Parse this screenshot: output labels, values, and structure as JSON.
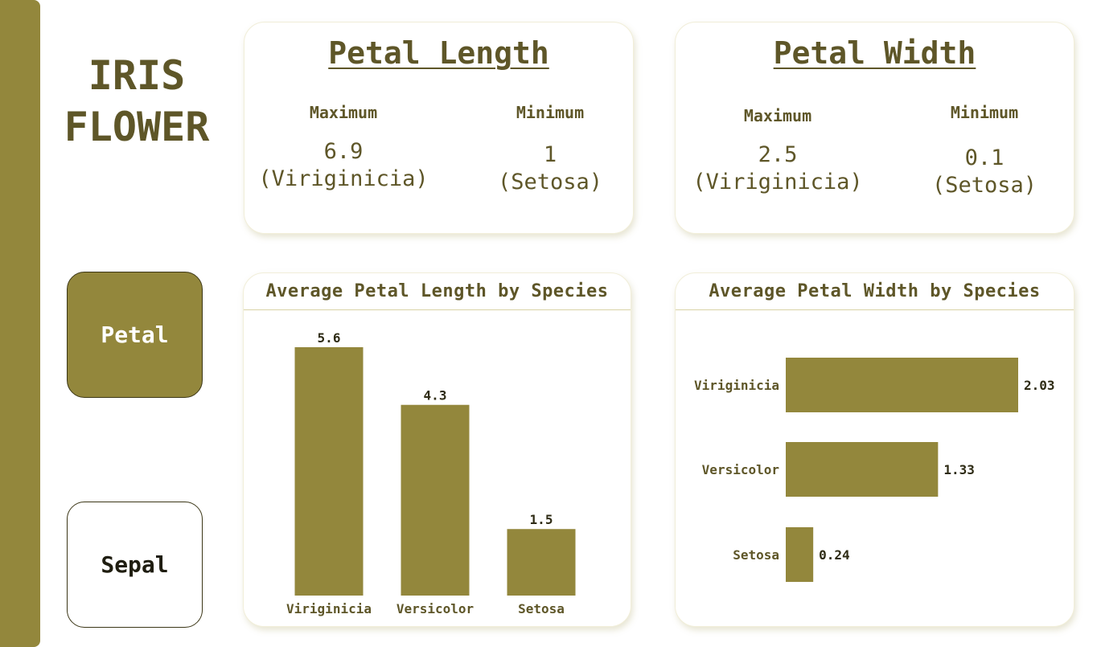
{
  "app": {
    "title_line1": "IRIS",
    "title_line2": "FLOWER"
  },
  "nav": {
    "petal_label": "Petal",
    "sepal_label": "Sepal"
  },
  "kpi_length": {
    "title": "Petal Length",
    "max_label": "Maximum",
    "max_value": "6.9",
    "max_species": "(Viriginicia)",
    "min_label": "Minimum",
    "min_value": "1",
    "min_species": "(Setosa)"
  },
  "kpi_width": {
    "title": "Petal Width",
    "max_label": "Maximum",
    "max_value": "2.5",
    "max_species": "(Viriginicia)",
    "min_label": "Minimum",
    "min_value": "0.1",
    "min_species": "(Setosa)"
  },
  "colors": {
    "accent": "#93873c",
    "text": "#5e5628"
  },
  "chart_data": [
    {
      "type": "bar",
      "title": "Average Petal Length by Species",
      "categories": [
        "Viriginicia",
        "Versicolor",
        "Setosa"
      ],
      "values": [
        5.6,
        4.3,
        1.5
      ],
      "value_labels": [
        "5.6",
        "4.3",
        "1.5"
      ],
      "orientation": "vertical"
    },
    {
      "type": "bar",
      "title": "Average Petal Width by Species",
      "categories": [
        "Viriginicia",
        "Versicolor",
        "Setosa"
      ],
      "values": [
        2.03,
        1.33,
        0.24
      ],
      "value_labels": [
        "2.03",
        "1.33",
        "0.24"
      ],
      "orientation": "horizontal"
    }
  ]
}
